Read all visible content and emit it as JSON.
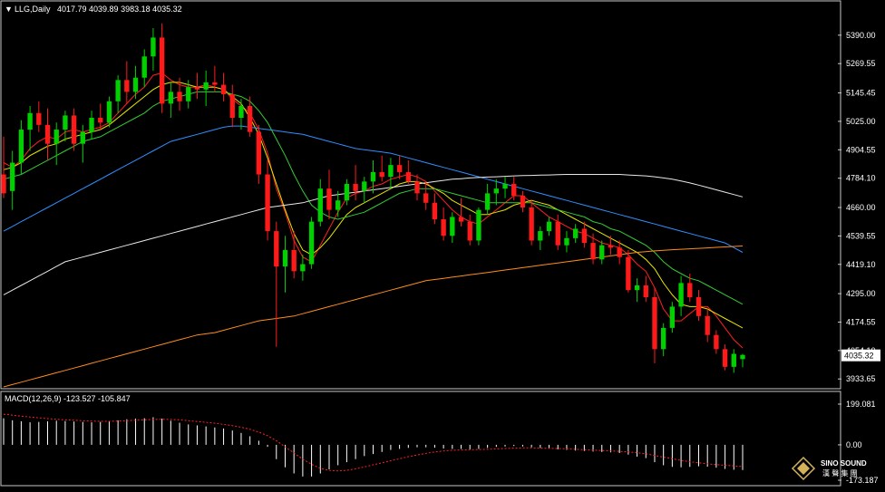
{
  "symbol_header": {
    "arrow_glyph": "▼",
    "title": "LLG,Daily",
    "ohlc": "4017.79 4039.89 3983.18 4035.32"
  },
  "macd_header": {
    "label": "MACD(12,26,9) -123.527 -105.847"
  },
  "price_axis": {
    "ticks": [
      "5390.00",
      "5269.55",
      "5145.45",
      "5025.00",
      "4904.55",
      "4784.10",
      "4660.00",
      "4539.55",
      "4419.10",
      "4295.00",
      "4174.55",
      "4054.10",
      "3933.65"
    ],
    "current_price_label": "4035.32"
  },
  "macd_axis": {
    "ticks": [
      "199.081",
      "0.00",
      "-173.187"
    ]
  },
  "logo": {
    "brand": "SINO SOUND",
    "sub": "漢 聲 集 團"
  },
  "colors": {
    "background": "#000000",
    "frame": "#c8c8c8",
    "bull_candle": "#00d000",
    "bear_candle": "#ff1a1a",
    "ma_fast": "#ff2020",
    "ma_yellow": "#e6e600",
    "ma_green": "#33cc33",
    "ma_blue": "#2f8fff",
    "ma_white": "#e8e8e8",
    "ma_orange": "#ff8c1a",
    "macd_hist": "#ffffff",
    "macd_signal": "#ff2020"
  },
  "chart_data": {
    "type": "candlestick",
    "symbol": "LLG",
    "timeframe": "Daily",
    "last_bar": {
      "open": 4017.79,
      "high": 4039.89,
      "low": 3983.18,
      "close": 4035.32
    },
    "ylim": [
      3900,
      5470
    ],
    "notes": "OHLC values are estimated from the rendered candles and are approximate.",
    "candles": [
      [
        4800,
        4960,
        4700,
        4720
      ],
      [
        4730,
        4900,
        4650,
        4850
      ],
      [
        4850,
        5030,
        4800,
        4990
      ],
      [
        4990,
        5090,
        4900,
        5060
      ],
      [
        5060,
        5110,
        4980,
        5010
      ],
      [
        5010,
        5080,
        4860,
        4930
      ],
      [
        4930,
        5020,
        4840,
        4990
      ],
      [
        4990,
        5070,
        4940,
        5050
      ],
      [
        5050,
        5080,
        4900,
        4930
      ],
      [
        4930,
        5010,
        4850,
        4980
      ],
      [
        4980,
        5070,
        4950,
        5040
      ],
      [
        5040,
        5100,
        4990,
        5020
      ],
      [
        5020,
        5130,
        5000,
        5110
      ],
      [
        5110,
        5220,
        5060,
        5200
      ],
      [
        5200,
        5280,
        5100,
        5150
      ],
      [
        5150,
        5260,
        5120,
        5210
      ],
      [
        5210,
        5330,
        5170,
        5300
      ],
      [
        5300,
        5420,
        5240,
        5380
      ],
      [
        5380,
        5440,
        5060,
        5100
      ],
      [
        5100,
        5190,
        5040,
        5150
      ],
      [
        5150,
        5210,
        5070,
        5110
      ],
      [
        5110,
        5200,
        5080,
        5170
      ],
      [
        5170,
        5230,
        5120,
        5160
      ],
      [
        5160,
        5240,
        5090,
        5190
      ],
      [
        5190,
        5260,
        5150,
        5180
      ],
      [
        5180,
        5230,
        5110,
        5140
      ],
      [
        5140,
        5180,
        5000,
        5040
      ],
      [
        5040,
        5120,
        4990,
        5090
      ],
      [
        5090,
        5130,
        4960,
        4980
      ],
      [
        4980,
        5010,
        4760,
        4800
      ],
      [
        4800,
        4860,
        4520,
        4560
      ],
      [
        4560,
        4600,
        4070,
        4410
      ],
      [
        4410,
        4540,
        4300,
        4480
      ],
      [
        4480,
        4560,
        4360,
        4390
      ],
      [
        4390,
        4460,
        4350,
        4420
      ],
      [
        4420,
        4620,
        4400,
        4600
      ],
      [
        4600,
        4780,
        4580,
        4740
      ],
      [
        4740,
        4820,
        4610,
        4650
      ],
      [
        4650,
        4730,
        4620,
        4690
      ],
      [
        4690,
        4780,
        4670,
        4760
      ],
      [
        4760,
        4840,
        4690,
        4730
      ],
      [
        4730,
        4790,
        4680,
        4770
      ],
      [
        4770,
        4860,
        4720,
        4810
      ],
      [
        4810,
        4880,
        4770,
        4790
      ],
      [
        4790,
        4870,
        4740,
        4840
      ],
      [
        4840,
        4880,
        4780,
        4810
      ],
      [
        4810,
        4860,
        4760,
        4770
      ],
      [
        4770,
        4800,
        4690,
        4720
      ],
      [
        4720,
        4770,
        4650,
        4680
      ],
      [
        4680,
        4720,
        4590,
        4610
      ],
      [
        4610,
        4660,
        4520,
        4540
      ],
      [
        4540,
        4640,
        4510,
        4620
      ],
      [
        4620,
        4700,
        4580,
        4600
      ],
      [
        4600,
        4630,
        4500,
        4520
      ],
      [
        4520,
        4660,
        4500,
        4650
      ],
      [
        4650,
        4760,
        4630,
        4720
      ],
      [
        4720,
        4780,
        4670,
        4740
      ],
      [
        4740,
        4790,
        4700,
        4760
      ],
      [
        4760,
        4790,
        4690,
        4710
      ],
      [
        4710,
        4730,
        4640,
        4660
      ],
      [
        4660,
        4690,
        4500,
        4520
      ],
      [
        4520,
        4580,
        4480,
        4560
      ],
      [
        4560,
        4620,
        4540,
        4600
      ],
      [
        4600,
        4630,
        4480,
        4500
      ],
      [
        4500,
        4560,
        4470,
        4530
      ],
      [
        4530,
        4590,
        4510,
        4570
      ],
      [
        4570,
        4600,
        4490,
        4510
      ],
      [
        4510,
        4550,
        4420,
        4440
      ],
      [
        4440,
        4520,
        4420,
        4500
      ],
      [
        4500,
        4540,
        4460,
        4490
      ],
      [
        4490,
        4520,
        4420,
        4450
      ],
      [
        4450,
        4480,
        4300,
        4310
      ],
      [
        4310,
        4360,
        4260,
        4330
      ],
      [
        4330,
        4370,
        4260,
        4280
      ],
      [
        4280,
        4320,
        4000,
        4060
      ],
      [
        4060,
        4170,
        4030,
        4150
      ],
      [
        4150,
        4260,
        4130,
        4240
      ],
      [
        4240,
        4370,
        4200,
        4340
      ],
      [
        4340,
        4380,
        4260,
        4280
      ],
      [
        4280,
        4310,
        4180,
        4200
      ],
      [
        4200,
        4230,
        4090,
        4120
      ],
      [
        4120,
        4140,
        4040,
        4060
      ],
      [
        4060,
        4080,
        3970,
        3985
      ],
      [
        3985,
        4060,
        3960,
        4040
      ],
      [
        4017.79,
        4039.89,
        3983.18,
        4035.32
      ]
    ],
    "moving_averages": [
      {
        "color": "#ff2020",
        "values": [
          4850,
          4830,
          4860,
          4910,
          4940,
          4960,
          4950,
          4980,
          4990,
          4980,
          4990,
          5000,
          5020,
          5060,
          5100,
          5140,
          5170,
          5220,
          5230,
          5200,
          5180,
          5170,
          5170,
          5180,
          5170,
          5160,
          5120,
          5090,
          5060,
          4990,
          4890,
          4740,
          4640,
          4520,
          4450,
          4430,
          4500,
          4570,
          4640,
          4700,
          4720,
          4730,
          4750,
          4760,
          4780,
          4790,
          4800,
          4790,
          4770,
          4730,
          4690,
          4650,
          4620,
          4600,
          4590,
          4620,
          4650,
          4680,
          4710,
          4710,
          4680,
          4650,
          4620,
          4600,
          4580,
          4560,
          4550,
          4530,
          4510,
          4500,
          4490,
          4460,
          4420,
          4390,
          4320,
          4230,
          4180,
          4180,
          4210,
          4240,
          4240,
          4200,
          4150,
          4100,
          4065
        ]
      },
      {
        "color": "#e6e600",
        "values": [
          4820,
          4830,
          4850,
          4880,
          4900,
          4920,
          4930,
          4950,
          4960,
          4970,
          4980,
          4990,
          5010,
          5040,
          5070,
          5100,
          5130,
          5160,
          5180,
          5190,
          5190,
          5180,
          5170,
          5170,
          5170,
          5160,
          5130,
          5100,
          5040,
          4970,
          4870,
          4760,
          4650,
          4550,
          4480,
          4460,
          4490,
          4530,
          4580,
          4630,
          4660,
          4680,
          4700,
          4720,
          4740,
          4760,
          4770,
          4770,
          4760,
          4740,
          4720,
          4690,
          4670,
          4650,
          4630,
          4630,
          4640,
          4650,
          4670,
          4680,
          4690,
          4680,
          4670,
          4650,
          4630,
          4610,
          4590,
          4570,
          4550,
          4530,
          4510,
          4490,
          4470,
          4440,
          4400,
          4340,
          4290,
          4250,
          4240,
          4240,
          4230,
          4210,
          4190,
          4170,
          4150
        ]
      },
      {
        "color": "#33cc33",
        "values": [
          4780,
          4790,
          4800,
          4820,
          4840,
          4860,
          4880,
          4900,
          4920,
          4940,
          4950,
          4960,
          4980,
          5000,
          5020,
          5040,
          5060,
          5090,
          5110,
          5120,
          5130,
          5140,
          5150,
          5150,
          5150,
          5150,
          5140,
          5130,
          5110,
          5070,
          5020,
          4950,
          4880,
          4800,
          4730,
          4670,
          4640,
          4620,
          4610,
          4620,
          4630,
          4640,
          4660,
          4680,
          4700,
          4720,
          4730,
          4740,
          4740,
          4740,
          4730,
          4720,
          4710,
          4700,
          4690,
          4680,
          4680,
          4680,
          4680,
          4680,
          4680,
          4670,
          4660,
          4650,
          4640,
          4630,
          4620,
          4600,
          4590,
          4570,
          4560,
          4540,
          4520,
          4500,
          4470,
          4430,
          4400,
          4380,
          4360,
          4350,
          4330,
          4310,
          4290,
          4270,
          4250
        ]
      },
      {
        "color": "#2f8fff",
        "values": [
          4560,
          4580,
          4600,
          4620,
          4640,
          4660,
          4680,
          4700,
          4720,
          4740,
          4760,
          4780,
          4800,
          4820,
          4840,
          4860,
          4880,
          4900,
          4920,
          4940,
          4950,
          4960,
          4970,
          4980,
          4990,
          5000,
          5005,
          5005,
          5000,
          4995,
          4990,
          4985,
          4980,
          4975,
          4970,
          4960,
          4950,
          4940,
          4930,
          4920,
          4910,
          4905,
          4900,
          4895,
          4890,
          4880,
          4870,
          4860,
          4850,
          4840,
          4830,
          4820,
          4810,
          4800,
          4790,
          4780,
          4770,
          4760,
          4750,
          4740,
          4730,
          4720,
          4710,
          4700,
          4690,
          4680,
          4670,
          4660,
          4650,
          4640,
          4630,
          4620,
          4610,
          4600,
          4590,
          4580,
          4570,
          4560,
          4550,
          4540,
          4530,
          4520,
          4510,
          4490,
          4470
        ]
      },
      {
        "color": "#e8e8e8",
        "values": [
          4290,
          4310,
          4330,
          4350,
          4370,
          4390,
          4410,
          4430,
          4440,
          4450,
          4460,
          4470,
          4480,
          4490,
          4500,
          4510,
          4520,
          4530,
          4540,
          4550,
          4560,
          4570,
          4580,
          4590,
          4600,
          4610,
          4620,
          4630,
          4640,
          4650,
          4660,
          4665,
          4670,
          4675,
          4680,
          4690,
          4700,
          4710,
          4715,
          4720,
          4725,
          4730,
          4735,
          4740,
          4745,
          4750,
          4755,
          4760,
          4765,
          4770,
          4775,
          4780,
          4782,
          4785,
          4787,
          4789,
          4790,
          4792,
          4794,
          4795,
          4796,
          4797,
          4798,
          4799,
          4800,
          4800,
          4800,
          4800,
          4800,
          4800,
          4800,
          4798,
          4796,
          4794,
          4790,
          4785,
          4780,
          4772,
          4764,
          4755,
          4745,
          4735,
          4725,
          4715,
          4705
        ]
      },
      {
        "color": "#ff8c1a",
        "values": [
          3900,
          3910,
          3920,
          3930,
          3940,
          3950,
          3960,
          3970,
          3980,
          3990,
          4000,
          4010,
          4020,
          4030,
          4040,
          4050,
          4060,
          4070,
          4080,
          4090,
          4100,
          4110,
          4120,
          4125,
          4130,
          4140,
          4150,
          4160,
          4170,
          4180,
          4185,
          4190,
          4195,
          4200,
          4210,
          4220,
          4230,
          4240,
          4250,
          4260,
          4270,
          4280,
          4290,
          4300,
          4310,
          4320,
          4330,
          4340,
          4350,
          4355,
          4360,
          4365,
          4370,
          4375,
          4380,
          4385,
          4390,
          4395,
          4400,
          4405,
          4410,
          4415,
          4420,
          4425,
          4430,
          4435,
          4440,
          4445,
          4450,
          4455,
          4460,
          4465,
          4470,
          4473,
          4476,
          4479,
          4481,
          4483,
          4485,
          4487,
          4489,
          4491,
          4493,
          4495,
          4497
        ]
      }
    ],
    "macd": {
      "label": "MACD(12,26,9)",
      "main": -123.527,
      "signal": -105.847,
      "ylim": [
        -173.187,
        199.081
      ],
      "histogram": [
        130,
        120,
        115,
        110,
        112,
        115,
        118,
        116,
        114,
        112,
        110,
        112,
        115,
        120,
        125,
        128,
        130,
        135,
        128,
        118,
        108,
        100,
        95,
        90,
        85,
        80,
        70,
        58,
        42,
        20,
        -10,
        -70,
        -110,
        -140,
        -155,
        -155,
        -140,
        -120,
        -100,
        -85,
        -70,
        -55,
        -45,
        -35,
        -25,
        -20,
        -15,
        -12,
        -12,
        -14,
        -18,
        -20,
        -20,
        -22,
        -20,
        -15,
        -10,
        -8,
        -6,
        -8,
        -12,
        -15,
        -18,
        -22,
        -25,
        -28,
        -30,
        -33,
        -35,
        -37,
        -40,
        -48,
        -58,
        -65,
        -85,
        -100,
        -108,
        -110,
        -108,
        -105,
        -107,
        -112,
        -118,
        -122,
        -123.527
      ],
      "signal_line": [
        150,
        145,
        140,
        136,
        132,
        128,
        125,
        122,
        120,
        118,
        116,
        115,
        115,
        116,
        118,
        120,
        122,
        124,
        125,
        124,
        122,
        118,
        114,
        110,
        106,
        100,
        94,
        86,
        76,
        62,
        45,
        20,
        -10,
        -40,
        -70,
        -95,
        -115,
        -125,
        -128,
        -125,
        -118,
        -108,
        -98,
        -88,
        -78,
        -68,
        -58,
        -50,
        -42,
        -35,
        -30,
        -27,
        -25,
        -24,
        -23,
        -22,
        -20,
        -18,
        -16,
        -15,
        -15,
        -16,
        -17,
        -18,
        -20,
        -22,
        -24,
        -26,
        -28,
        -30,
        -32,
        -35,
        -39,
        -44,
        -52,
        -60,
        -68,
        -76,
        -83,
        -88,
        -93,
        -97,
        -100,
        -103,
        -105.847
      ]
    }
  }
}
